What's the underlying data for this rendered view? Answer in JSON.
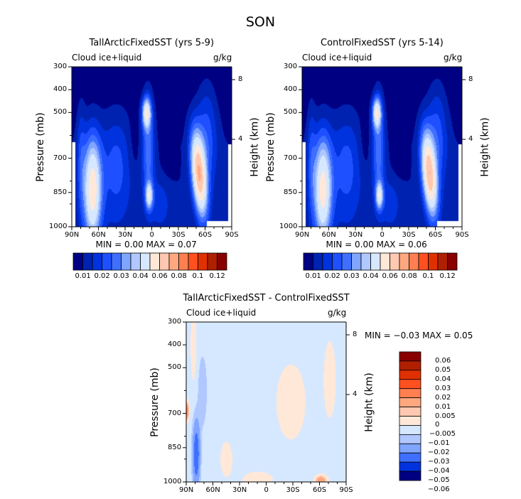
{
  "title": "SON",
  "palette": [
    "#000083",
    "#0022b0",
    "#0033dd",
    "#1e50ff",
    "#3f6fff",
    "#7fa5ff",
    "#b0c8ff",
    "#d6e8ff",
    "#ffe8d8",
    "#ffc8b0",
    "#ffa880",
    "#ff7f50",
    "#ff5020",
    "#e03000",
    "#b02000",
    "#880000"
  ],
  "diff_palette": [
    "#880000",
    "#b02000",
    "#e03000",
    "#ff5020",
    "#ff7f50",
    "#ffa880",
    "#ffc8b0",
    "#ffe8d8",
    "#d6e8ff",
    "#b0c8ff",
    "#7fa5ff",
    "#3f6fff",
    "#0033dd",
    "#000083"
  ],
  "chart_data": [
    {
      "type": "heatmap",
      "title": "TallArcticFixedSST (yrs 5-9)",
      "left_string": "Cloud ice+liquid",
      "right_string": "g/kg",
      "xlabel": "",
      "ylabel": "Pressure (mb)",
      "ylabel_right": "Height (km)",
      "x_ticks": [
        "90N",
        "60N",
        "30N",
        "0",
        "30S",
        "60S",
        "90S"
      ],
      "y_ticks": [
        "300",
        "400",
        "500",
        "700",
        "850",
        "1000"
      ],
      "y_ticks_right": [
        "8",
        "4"
      ],
      "ylim": [
        1000,
        300
      ],
      "xlim": [
        "90N",
        "90S"
      ],
      "stats": "MIN =    0.00   MAX =    0.07",
      "levels": [
        0.01,
        0.015,
        0.02,
        0.025,
        0.03,
        0.035,
        0.04,
        0.05,
        0.06,
        0.07,
        0.08,
        0.09,
        0.1,
        0.11,
        0.12
      ],
      "colorbar_labels": [
        "0.01",
        "0.02",
        "0.03",
        "0.04",
        "0.06",
        "0.08",
        "0.1",
        "0.12"
      ],
      "colorbar": "horizontal-bottom"
    },
    {
      "type": "heatmap",
      "title": "ControlFixedSST (yrs 5-14)",
      "left_string": "Cloud ice+liquid",
      "right_string": "g/kg",
      "xlabel": "",
      "ylabel": "Pressure (mb)",
      "ylabel_right": "Height (km)",
      "x_ticks": [
        "90N",
        "60N",
        "30N",
        "0",
        "30S",
        "60S",
        "90S"
      ],
      "y_ticks": [
        "300",
        "400",
        "500",
        "700",
        "850",
        "1000"
      ],
      "y_ticks_right": [
        "8",
        "4"
      ],
      "ylim": [
        1000,
        300
      ],
      "xlim": [
        "90N",
        "90S"
      ],
      "stats": "MIN =    0.00   MAX =    0.06",
      "levels": [
        0.01,
        0.015,
        0.02,
        0.025,
        0.03,
        0.035,
        0.04,
        0.05,
        0.06,
        0.07,
        0.08,
        0.09,
        0.1,
        0.11,
        0.12
      ],
      "colorbar_labels": [
        "0.01",
        "0.02",
        "0.03",
        "0.04",
        "0.06",
        "0.08",
        "0.1",
        "0.12"
      ],
      "colorbar": "horizontal-bottom"
    },
    {
      "type": "heatmap",
      "title": "TallArcticFixedSST - ControlFixedSST",
      "left_string": "Cloud ice+liquid",
      "right_string": "g/kg",
      "xlabel": "",
      "ylabel": "Pressure (mb)",
      "ylabel_right": "Height (km)",
      "x_ticks": [
        "90N",
        "60N",
        "30N",
        "0",
        "30S",
        "60S",
        "90S"
      ],
      "y_ticks": [
        "300",
        "400",
        "500",
        "700",
        "850",
        "1000"
      ],
      "y_ticks_right": [
        "8",
        "4"
      ],
      "ylim": [
        1000,
        300
      ],
      "xlim": [
        "90N",
        "90S"
      ],
      "stats": "MIN =   −0.03   MAX =    0.05",
      "levels": [
        0.06,
        0.05,
        0.04,
        0.03,
        0.02,
        0.01,
        0.005,
        0,
        -0.005,
        -0.01,
        -0.02,
        -0.03,
        -0.04,
        -0.05,
        -0.06
      ],
      "colorbar_labels": [
        "0.06",
        "0.05",
        "0.04",
        "0.03",
        "0.02",
        "0.01",
        "0.005",
        "0",
        "−0.005",
        "−0.01",
        "−0.02",
        "−0.03",
        "−0.04",
        "−0.05",
        "−0.06"
      ],
      "colorbar": "vertical-right"
    }
  ]
}
